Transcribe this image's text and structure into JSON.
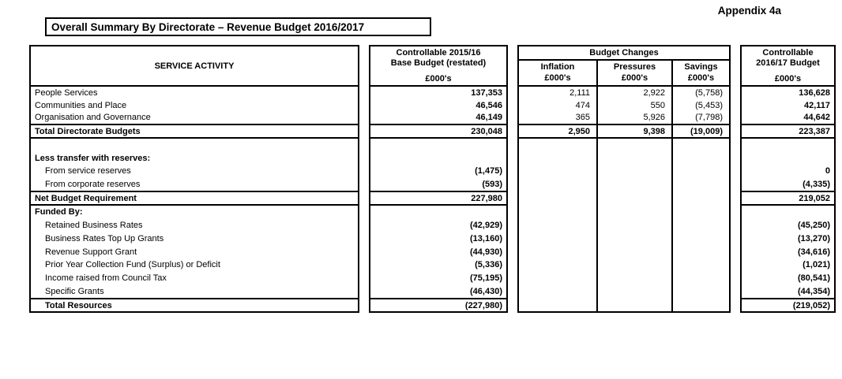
{
  "page": {
    "appendix": "Appendix 4a",
    "title": "Overall Summary By Directorate – Revenue Budget 2016/2017"
  },
  "colors": {
    "text": "#000000",
    "border": "#000000",
    "background": "#ffffff"
  },
  "table": {
    "headers": {
      "service_activity": "SERVICE ACTIVITY",
      "base_budget_line1": "Controllable 2015/16",
      "base_budget_line2": "Base Budget (restated)",
      "budget_changes": "Budget Changes",
      "inflation": "Inflation",
      "pressures": "Pressures",
      "savings": "Savings",
      "budget_1617_line1": "Controllable",
      "budget_1617_line2": "2016/17 Budget",
      "units": "£000's"
    },
    "rows": {
      "directorates": [
        {
          "label": "People Services",
          "base": "137,353",
          "inflation": "2,111",
          "pressures": "2,922",
          "savings": "(5,758)",
          "budget": "136,628"
        },
        {
          "label": "Communities and Place",
          "base": "46,546",
          "inflation": "474",
          "pressures": "550",
          "savings": "(5,453)",
          "budget": "42,117"
        },
        {
          "label": "Organisation and Governance",
          "base": "46,149",
          "inflation": "365",
          "pressures": "5,926",
          "savings": "(7,798)",
          "budget": "44,642"
        }
      ],
      "total_directorate": {
        "label": "Total Directorate Budgets",
        "base": "230,048",
        "inflation": "2,950",
        "pressures": "9,398",
        "savings": "(19,009)",
        "budget": "223,387"
      },
      "reserves": [
        {
          "label": "",
          "base": "",
          "budget": ""
        },
        {
          "label": "Less transfer with reserves:",
          "bold": true,
          "base": "",
          "budget": ""
        },
        {
          "label": "From service reserves",
          "indent": true,
          "base": "(1,475)",
          "budget": "0"
        },
        {
          "label": "From corporate reserves",
          "indent": true,
          "base": "(593)",
          "budget": "(4,335)"
        }
      ],
      "net_budget": {
        "label": "Net Budget Requirement",
        "base": "227,980",
        "budget": "219,052"
      },
      "funded_by": [
        {
          "label": "Funded By:",
          "bold": true,
          "base": "",
          "budget": ""
        },
        {
          "label": "Retained Business Rates",
          "indent": true,
          "base": "(42,929)",
          "budget": "(45,250)"
        },
        {
          "label": "Business Rates Top Up Grants",
          "indent": true,
          "base": "(13,160)",
          "budget": "(13,270)"
        },
        {
          "label": "Revenue Support Grant",
          "indent": true,
          "base": "(44,930)",
          "budget": "(34,616)"
        },
        {
          "label": "Prior Year Collection Fund (Surplus) or Deficit",
          "indent": true,
          "base": "(5,336)",
          "budget": "(1,021)"
        },
        {
          "label": "Income raised from Council Tax",
          "indent": true,
          "base": "(75,195)",
          "budget": "(80,541)"
        },
        {
          "label": "Specific Grants",
          "indent": true,
          "base": "(46,430)",
          "budget": "(44,354)"
        }
      ],
      "total_resources": {
        "label": "Total Resources",
        "indent": true,
        "base": "(227,980)",
        "budget": "(219,052)"
      }
    }
  }
}
